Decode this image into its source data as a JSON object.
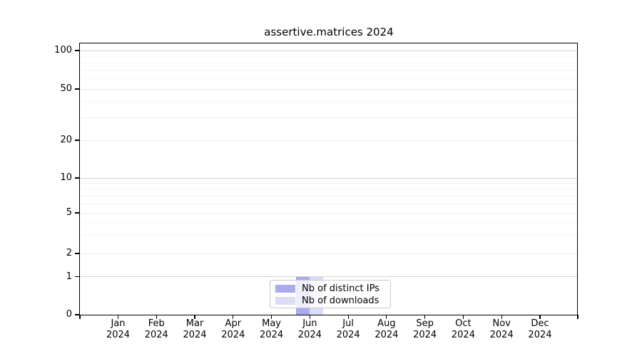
{
  "figure": {
    "background": "#ffffff"
  },
  "chart_data": {
    "type": "bar",
    "title": "assertive.matrices 2024",
    "categories": [
      "Jan",
      "Feb",
      "Mar",
      "Apr",
      "May",
      "Jun",
      "Jul",
      "Aug",
      "Sep",
      "Oct",
      "Nov",
      "Dec"
    ],
    "year": "2024",
    "series": [
      {
        "name": "Nb of distinct IPs",
        "color": "#aaaaee",
        "values": [
          0,
          0,
          0,
          0,
          0,
          1,
          0,
          0,
          0,
          0,
          0,
          0
        ]
      },
      {
        "name": "Nb of downloads",
        "color": "#dcdcf7",
        "values": [
          0,
          0,
          0,
          0,
          0,
          1,
          0,
          0,
          0,
          0,
          0,
          0
        ]
      }
    ],
    "yticks": [
      0,
      1,
      2,
      5,
      10,
      20,
      50,
      100
    ],
    "yticks_minor": [
      3,
      4,
      6,
      7,
      8,
      9,
      30,
      40,
      60,
      70,
      80,
      90
    ],
    "yscale": "log-like",
    "ylim": [
      0,
      115
    ],
    "xlabel": "",
    "ylabel": "",
    "grid": true,
    "legend_position": "lower center"
  },
  "colors": {
    "spine": "#000000",
    "grid_decade": "#d4d4d4",
    "grid_mid": "#ebebeb",
    "grid_minor": "#f4f4f4",
    "legend_border": "#c9c9c9",
    "bar_distinct_ips": "#aaaaee",
    "bar_downloads": "#dcdcf7"
  }
}
